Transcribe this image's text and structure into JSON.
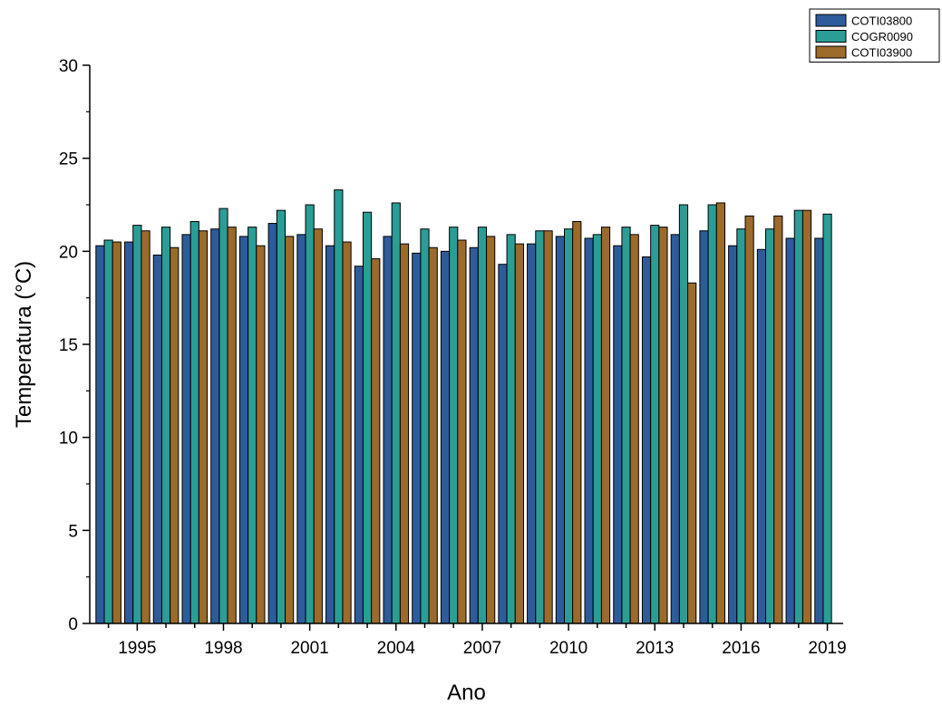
{
  "chart_data": {
    "type": "bar",
    "xlabel": "Ano",
    "ylabel": "Temperatura (°C)",
    "ylim": [
      0,
      30
    ],
    "yticks": [
      0,
      5,
      10,
      15,
      20,
      25,
      30
    ],
    "categories": [
      "1994",
      "1995",
      "1996",
      "1997",
      "1998",
      "1999",
      "2000",
      "2001",
      "2002",
      "2003",
      "2004",
      "2005",
      "2006",
      "2007",
      "2008",
      "2009",
      "2010",
      "2011",
      "2012",
      "2013",
      "2014",
      "2015",
      "2016",
      "2017",
      "2018",
      "2019"
    ],
    "xtick_labels": [
      "1995",
      "1998",
      "2001",
      "2004",
      "2007",
      "2010",
      "2013",
      "2016",
      "2019"
    ],
    "legend_position": "top-right",
    "series": [
      {
        "name": "COTI03800",
        "color": "#2e5c9a",
        "values": [
          20.3,
          20.5,
          19.8,
          20.9,
          21.2,
          20.8,
          21.5,
          20.9,
          20.3,
          19.2,
          20.8,
          19.9,
          20.0,
          20.2,
          19.3,
          20.4,
          20.8,
          20.7,
          20.3,
          19.7,
          20.9,
          21.1,
          20.3,
          20.1,
          20.7,
          20.7
        ]
      },
      {
        "name": "COGR0090",
        "color": "#2a9d96",
        "values": [
          20.6,
          21.4,
          21.3,
          21.6,
          22.3,
          21.3,
          22.2,
          22.5,
          23.3,
          22.1,
          22.6,
          21.2,
          21.3,
          21.3,
          20.9,
          21.1,
          21.2,
          20.9,
          21.3,
          21.4,
          22.5,
          22.5,
          21.2,
          21.2,
          22.2,
          22.0
        ]
      },
      {
        "name": "COTI03900",
        "color": "#9c6a2a",
        "values": [
          20.5,
          21.1,
          20.2,
          21.1,
          21.3,
          20.3,
          20.8,
          21.2,
          20.5,
          19.6,
          20.4,
          20.2,
          20.6,
          20.8,
          20.4,
          21.1,
          21.6,
          21.3,
          20.9,
          21.3,
          18.3,
          22.6,
          21.9,
          21.9,
          22.2,
          null
        ]
      }
    ]
  }
}
